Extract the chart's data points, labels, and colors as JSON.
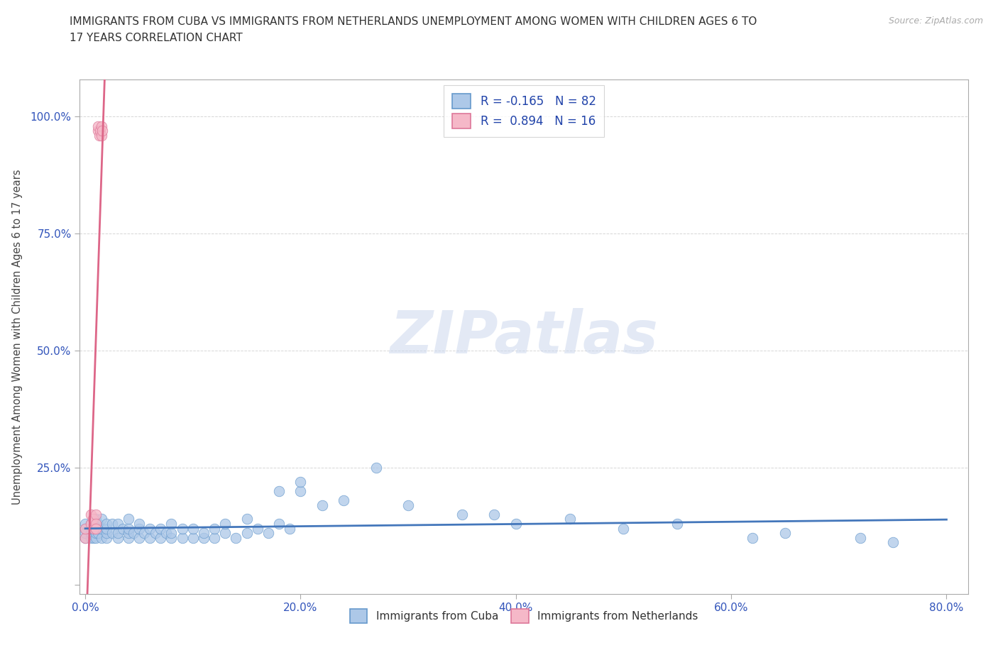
{
  "title_line1": "IMMIGRANTS FROM CUBA VS IMMIGRANTS FROM NETHERLANDS UNEMPLOYMENT AMONG WOMEN WITH CHILDREN AGES 6 TO",
  "title_line2": "17 YEARS CORRELATION CHART",
  "source": "Source: ZipAtlas.com",
  "ylabel": "Unemployment Among Women with Children Ages 6 to 17 years",
  "xlim": [
    -0.005,
    0.82
  ],
  "ylim": [
    -0.02,
    1.08
  ],
  "xticks": [
    0.0,
    0.2,
    0.4,
    0.6,
    0.8
  ],
  "xticklabels": [
    "0.0%",
    "20.0%",
    "40.0%",
    "60.0%",
    "80.0%"
  ],
  "yticks": [
    0.0,
    0.25,
    0.5,
    0.75,
    1.0
  ],
  "yticklabels": [
    "",
    "25.0%",
    "50.0%",
    "75.0%",
    "100.0%"
  ],
  "cuba_color": "#adc8e8",
  "cuba_edge_color": "#6699cc",
  "netherlands_color": "#f5b8c8",
  "netherlands_edge_color": "#dd7799",
  "cuba_R": -0.165,
  "cuba_N": 82,
  "netherlands_R": 0.894,
  "netherlands_N": 16,
  "cuba_line_color": "#4477bb",
  "netherlands_line_color": "#dd6688",
  "watermark_text": "ZIPatlas",
  "legend_R_color": "#2244aa",
  "grid_color": "#cccccc",
  "spine_color": "#aaaaaa",
  "tick_color": "#3355bb",
  "source_color": "#aaaaaa"
}
